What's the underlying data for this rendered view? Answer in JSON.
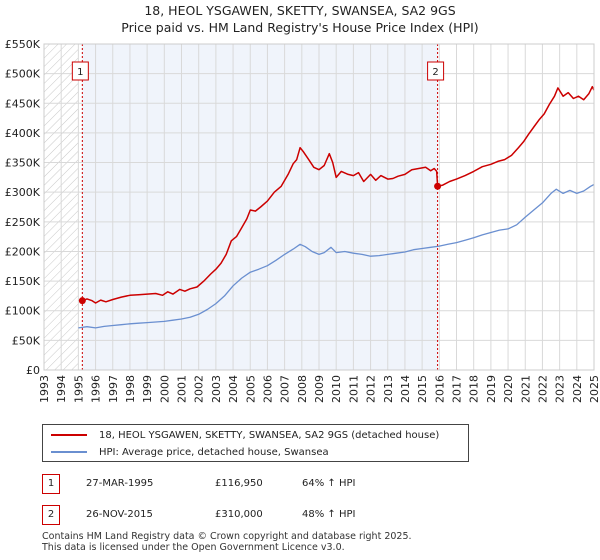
{
  "title": {
    "line1": "18, HEOL YSGAWEN, SKETTY, SWANSEA, SA2 9GS",
    "line2": "Price paid vs. HM Land Registry's House Price Index (HPI)"
  },
  "chart_data": {
    "type": "line",
    "title": "18, HEOL YSGAWEN, SKETTY, SWANSEA, SA2 9GS — Price paid vs. HM Land Registry's House Price Index (HPI)",
    "xlim": [
      1993,
      2025
    ],
    "ylim": [
      0,
      550000
    ],
    "x_ticks": [
      "1993",
      "1994",
      "1995",
      "1996",
      "1997",
      "1998",
      "1999",
      "2000",
      "2001",
      "2002",
      "2003",
      "2004",
      "2005",
      "2006",
      "2007",
      "2008",
      "2009",
      "2010",
      "2011",
      "2012",
      "2013",
      "2014",
      "2015",
      "2016",
      "2017",
      "2018",
      "2019",
      "2020",
      "2021",
      "2022",
      "2023",
      "2024",
      "2025"
    ],
    "y_ticks": [
      {
        "value": 0,
        "label": "£0"
      },
      {
        "value": 50000,
        "label": "£50K"
      },
      {
        "value": 100000,
        "label": "£100K"
      },
      {
        "value": 150000,
        "label": "£150K"
      },
      {
        "value": 200000,
        "label": "£200K"
      },
      {
        "value": 250000,
        "label": "£250K"
      },
      {
        "value": 300000,
        "label": "£300K"
      },
      {
        "value": 350000,
        "label": "£350K"
      },
      {
        "value": 400000,
        "label": "£400K"
      },
      {
        "value": 450000,
        "label": "£450K"
      },
      {
        "value": 500000,
        "label": "£500K"
      },
      {
        "value": 550000,
        "label": "£550K"
      }
    ],
    "grid": true,
    "series": [
      {
        "name": "18, HEOL YSGAWEN, SKETTY, SWANSEA, SA2 9GS (detached house)",
        "color": "#cc0000",
        "points": [
          [
            1995.23,
            116950
          ],
          [
            1995.5,
            120000
          ],
          [
            1995.8,
            117000
          ],
          [
            1996.0,
            113000
          ],
          [
            1996.3,
            118000
          ],
          [
            1996.6,
            115000
          ],
          [
            1997.0,
            119000
          ],
          [
            1997.5,
            123000
          ],
          [
            1998.0,
            126000
          ],
          [
            1998.5,
            127000
          ],
          [
            1999.0,
            128000
          ],
          [
            1999.5,
            129000
          ],
          [
            1999.9,
            126000
          ],
          [
            2000.2,
            132000
          ],
          [
            2000.5,
            128000
          ],
          [
            2000.9,
            136000
          ],
          [
            2001.2,
            133000
          ],
          [
            2001.5,
            137000
          ],
          [
            2001.9,
            140000
          ],
          [
            2002.3,
            150000
          ],
          [
            2002.7,
            162000
          ],
          [
            2003.0,
            170000
          ],
          [
            2003.3,
            180000
          ],
          [
            2003.6,
            195000
          ],
          [
            2003.9,
            218000
          ],
          [
            2004.2,
            225000
          ],
          [
            2004.5,
            240000
          ],
          [
            2004.8,
            255000
          ],
          [
            2005.0,
            270000
          ],
          [
            2005.3,
            268000
          ],
          [
            2005.6,
            275000
          ],
          [
            2006.0,
            285000
          ],
          [
            2006.4,
            300000
          ],
          [
            2006.8,
            310000
          ],
          [
            2007.2,
            330000
          ],
          [
            2007.5,
            348000
          ],
          [
            2007.7,
            355000
          ],
          [
            2007.9,
            375000
          ],
          [
            2008.1,
            368000
          ],
          [
            2008.4,
            355000
          ],
          [
            2008.7,
            342000
          ],
          [
            2009.0,
            338000
          ],
          [
            2009.3,
            345000
          ],
          [
            2009.6,
            365000
          ],
          [
            2009.8,
            350000
          ],
          [
            2010.0,
            325000
          ],
          [
            2010.3,
            335000
          ],
          [
            2010.7,
            330000
          ],
          [
            2011.0,
            328000
          ],
          [
            2011.3,
            333000
          ],
          [
            2011.6,
            318000
          ],
          [
            2012.0,
            330000
          ],
          [
            2012.3,
            320000
          ],
          [
            2012.6,
            328000
          ],
          [
            2013.0,
            322000
          ],
          [
            2013.3,
            323000
          ],
          [
            2013.6,
            327000
          ],
          [
            2014.0,
            330000
          ],
          [
            2014.4,
            338000
          ],
          [
            2014.8,
            340000
          ],
          [
            2015.2,
            342000
          ],
          [
            2015.5,
            336000
          ],
          [
            2015.7,
            340000
          ],
          [
            2015.85,
            335000
          ],
          [
            2015.9,
            310000
          ],
          [
            2016.2,
            312000
          ],
          [
            2016.6,
            318000
          ],
          [
            2017.0,
            322000
          ],
          [
            2017.5,
            328000
          ],
          [
            2018.0,
            335000
          ],
          [
            2018.5,
            343000
          ],
          [
            2019.0,
            347000
          ],
          [
            2019.4,
            352000
          ],
          [
            2019.8,
            355000
          ],
          [
            2020.2,
            362000
          ],
          [
            2020.6,
            375000
          ],
          [
            2020.9,
            385000
          ],
          [
            2021.2,
            398000
          ],
          [
            2021.5,
            410000
          ],
          [
            2021.8,
            422000
          ],
          [
            2022.1,
            432000
          ],
          [
            2022.4,
            448000
          ],
          [
            2022.7,
            462000
          ],
          [
            2022.9,
            476000
          ],
          [
            2023.2,
            462000
          ],
          [
            2023.5,
            468000
          ],
          [
            2023.8,
            458000
          ],
          [
            2024.1,
            462000
          ],
          [
            2024.4,
            456000
          ],
          [
            2024.7,
            466000
          ],
          [
            2024.9,
            478000
          ],
          [
            2025.0,
            472000
          ]
        ]
      },
      {
        "name": "HPI: Average price, detached house, Swansea",
        "color": "#6a8fd0",
        "points": [
          [
            1995.0,
            71000
          ],
          [
            1995.5,
            73000
          ],
          [
            1996.0,
            71000
          ],
          [
            1996.5,
            73500
          ],
          [
            1997.0,
            75000
          ],
          [
            1997.5,
            76500
          ],
          [
            1998.0,
            78000
          ],
          [
            1998.5,
            79000
          ],
          [
            1999.0,
            80000
          ],
          [
            1999.5,
            81000
          ],
          [
            2000.0,
            82000
          ],
          [
            2000.5,
            84000
          ],
          [
            2001.0,
            86000
          ],
          [
            2001.5,
            89000
          ],
          [
            2002.0,
            94000
          ],
          [
            2002.5,
            102000
          ],
          [
            2003.0,
            112000
          ],
          [
            2003.5,
            125000
          ],
          [
            2004.0,
            142000
          ],
          [
            2004.5,
            155000
          ],
          [
            2005.0,
            165000
          ],
          [
            2005.5,
            170000
          ],
          [
            2006.0,
            176000
          ],
          [
            2006.5,
            185000
          ],
          [
            2007.0,
            195000
          ],
          [
            2007.5,
            204000
          ],
          [
            2007.9,
            212000
          ],
          [
            2008.2,
            208000
          ],
          [
            2008.6,
            200000
          ],
          [
            2009.0,
            195000
          ],
          [
            2009.3,
            198000
          ],
          [
            2009.7,
            207000
          ],
          [
            2010.0,
            198000
          ],
          [
            2010.5,
            200000
          ],
          [
            2011.0,
            197000
          ],
          [
            2011.5,
            195000
          ],
          [
            2012.0,
            192000
          ],
          [
            2012.5,
            193000
          ],
          [
            2013.0,
            195000
          ],
          [
            2013.5,
            197000
          ],
          [
            2014.0,
            199000
          ],
          [
            2014.5,
            203000
          ],
          [
            2015.0,
            205000
          ],
          [
            2015.5,
            207000
          ],
          [
            2016.0,
            209000
          ],
          [
            2016.5,
            212000
          ],
          [
            2017.0,
            215000
          ],
          [
            2017.5,
            219000
          ],
          [
            2018.0,
            223000
          ],
          [
            2018.5,
            228000
          ],
          [
            2019.0,
            232000
          ],
          [
            2019.5,
            236000
          ],
          [
            2020.0,
            238000
          ],
          [
            2020.5,
            245000
          ],
          [
            2021.0,
            258000
          ],
          [
            2021.5,
            270000
          ],
          [
            2022.0,
            282000
          ],
          [
            2022.5,
            298000
          ],
          [
            2022.8,
            305000
          ],
          [
            2023.2,
            298000
          ],
          [
            2023.6,
            303000
          ],
          [
            2024.0,
            298000
          ],
          [
            2024.4,
            302000
          ],
          [
            2024.8,
            310000
          ],
          [
            2025.0,
            313000
          ]
        ]
      }
    ],
    "markers": [
      {
        "label": "1",
        "x": 1995.23,
        "price": 116950
      },
      {
        "label": "2",
        "x": 2015.9,
        "price": 310000
      }
    ],
    "shading": {
      "hatched_before": 1995.0
    }
  },
  "legend": {
    "property_label": "18, HEOL YSGAWEN, SKETTY, SWANSEA, SA2 9GS (detached house)",
    "hpi_label": "HPI: Average price, detached house, Swansea",
    "property_color": "#cc0000",
    "hpi_color": "#6a8fd0"
  },
  "sales": [
    {
      "num": "1",
      "date": "27-MAR-1995",
      "price": "£116,950",
      "hpi": "64% ↑ HPI"
    },
    {
      "num": "2",
      "date": "26-NOV-2015",
      "price": "£310,000",
      "hpi": "48% ↑ HPI"
    }
  ],
  "footer": {
    "line1": "Contains HM Land Registry data © Crown copyright and database right 2025.",
    "line2": "This data is licensed under the Open Government Licence v3.0."
  }
}
